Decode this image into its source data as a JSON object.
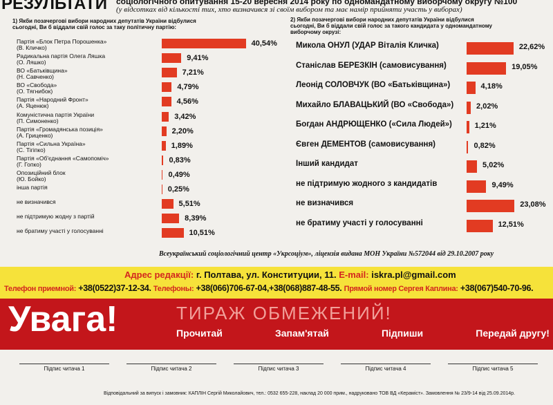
{
  "header": {
    "title": "РЕЗУЛЬТАТИ",
    "subtitle": "соціологічного опитування 15-20 вересня 2014 року по одномандатному виборчому округу №100",
    "note": "(у відсотках від кількості тих, хто визначився зі своїм вибором та має намір прийняти участь у виборах)"
  },
  "chart_data": [
    {
      "type": "bar",
      "title": "1) Якби позачергові вибори народних депутатів України відбулися сьогодні, Ви б віддали свій голос за таку політичну партію:",
      "color": "#e23b22",
      "categories": [
        "Партія «Блок Петра Порошенка»\n(В. Кличко)",
        "Радикальна партія Олега Ляшка\n(О. Ляшко)",
        "ВО «Батьківщина»\n(Н. Савченко)",
        "ВО «Свобода»\n(О. Тягнибок)",
        "Партія «Народний Фронт»\n(А. Яценюк)",
        "Комуністична партія України\n(П. Симоненко)",
        "Партія «Громадянська позиція»\n(А. Гриценко)",
        "Партія «Сильна Україна»\n(С. Тігіпко)",
        "Партія «Об'єднання «Самопоміч»\n(Г. Гопко)",
        "Опозиційний блок\n(Ю. Бойко)",
        "інша партія",
        "не визначився",
        "не підтримую жодну з партій",
        "не братиму участі у голосуванні"
      ],
      "values": [
        40.54,
        9.41,
        7.21,
        4.79,
        4.56,
        3.42,
        2.2,
        1.89,
        0.83,
        0.49,
        0.25,
        5.51,
        8.39,
        10.51
      ],
      "value_labels": [
        "40,54%",
        "9,41%",
        "7,21%",
        "4,79%",
        "4,56%",
        "3,42%",
        "2,20%",
        "1,89%",
        "0,83%",
        "0,49%",
        "0,25%",
        "5,51%",
        "8,39%",
        "10,51%"
      ]
    },
    {
      "type": "bar",
      "title": "2) Якби позачергові вибори народних депутатів України відбулися сьогодні, Ви б віддали свій голос за такого кандидата у одномандатному виборчому окрузі:",
      "color": "#e23b22",
      "categories": [
        "Микола ОНУЛ (УДАР Віталія Кличка)",
        "Станіслав БЕРЕЗКІН (самовисування)",
        "Леонід СОЛОВЧУК (ВО «Батьківщина»)",
        "Михайло БЛАВАЦЬКИЙ (ВО «Свобода»)",
        "Богдан АНДРЮЩЕНКО («Сила Людей»)",
        "Євген ДЕМЕНТОВ (самовисування)",
        "Інший кандидат",
        "не підтримую жодного з кандидатів",
        "не визначився",
        "не братиму участі у голосуванні"
      ],
      "values": [
        22.62,
        19.05,
        4.18,
        2.02,
        1.21,
        0.82,
        5.02,
        9.49,
        23.08,
        12.51
      ],
      "value_labels": [
        "22,62%",
        "19,05%",
        "4,18%",
        "2,02%",
        "1,21%",
        "0,82%",
        "5,02%",
        "9,49%",
        "23,08%",
        "12,51%"
      ]
    }
  ],
  "source": "Всеукраїнський соціологічний центр «Укрсоціум», ліцензія видана МОН України №572044 від 29.10.2007 року",
  "contacts": {
    "address_label": "Адрес редакції:",
    "address": "г. Полтава, ул. Конституции, 11.",
    "email_label": "E-mail:",
    "email": "iskra.pl@gmail.com",
    "reception_label": "Телефон приемной:",
    "reception": "+38(0522)37-12-34.",
    "phones_label": "Телефоны:",
    "phones": "+38(066)706-67-04,+38(068)887-48-55.",
    "direct_label": "Прямой номер Сергея Каплина:",
    "direct": "+38(067)540-70-96."
  },
  "banner": {
    "title": "Увага!",
    "limited": "ТИРАЖ ОБМЕЖЕНИЙ!",
    "steps": [
      "Прочитай",
      "Запам'ятай",
      "Підпиши",
      "Передай другу!"
    ]
  },
  "signatures": [
    "Підпис читача 1",
    "Підпис читача 2",
    "Підпис читача 3",
    "Підпис читача 4",
    "Підпис читача 5"
  ],
  "footer": "Відповідальний за випуск і замовник: КАПЛІН Сергій Миколайович, тел.: 0532 655-228, наклад 20 000 прим., надруковано ТОВ ВД «Кераміст». Замовлення № 23/9-14 від 25.09.2014р."
}
